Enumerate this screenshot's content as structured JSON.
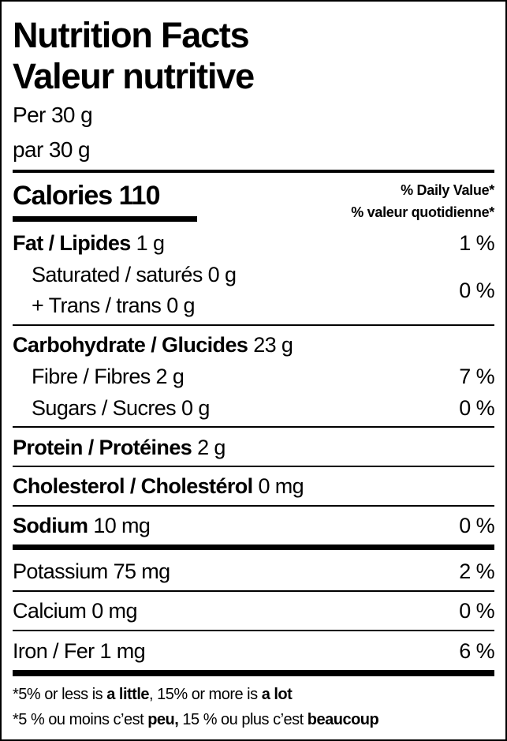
{
  "title_en": "Nutrition Facts",
  "title_fr": "Valeur nutritive",
  "serving_en": "Per 30 g",
  "serving_fr": "par 30 g",
  "calories": {
    "label": "Calories",
    "value": "110"
  },
  "daily_value_en": "% Daily Value*",
  "daily_value_fr": "% valeur quotidienne*",
  "nutrients": {
    "fat": {
      "label": "Fat / Lipides",
      "amount": "1 g",
      "dv": "1 %"
    },
    "saturated": {
      "label": "Saturated / saturés",
      "amount": "0 g"
    },
    "trans": {
      "label": "+ Trans / trans",
      "amount": "0 g"
    },
    "sat_trans_dv": "0 %",
    "carbohydrate": {
      "label": "Carbohydrate / Glucides",
      "amount": "23 g"
    },
    "fibre": {
      "label": "Fibre / Fibres",
      "amount": "2 g",
      "dv": "7 %"
    },
    "sugars": {
      "label": "Sugars / Sucres",
      "amount": "0 g",
      "dv": "0 %"
    },
    "protein": {
      "label": "Protein / Protéines",
      "amount": "2 g"
    },
    "cholesterol": {
      "label": "Cholesterol / Cholestérol",
      "amount": "0 mg"
    },
    "sodium": {
      "label": "Sodium",
      "amount": "10 mg",
      "dv": "0 %"
    },
    "potassium": {
      "label": "Potassium",
      "amount": "75 mg",
      "dv": "2 %"
    },
    "calcium": {
      "label": "Calcium",
      "amount": "0 mg",
      "dv": "0 %"
    },
    "iron": {
      "label": "Iron / Fer",
      "amount": "1 mg",
      "dv": "6 %"
    }
  },
  "footnote_en": {
    "a": "*5% or less is ",
    "b": "a little",
    ",c": "",
    "c": ", 15% or more is ",
    "d": "a lot"
  },
  "footnote_fr": {
    "a": "*5 % ou moins c’est ",
    "b": "peu,",
    "c": " 15 % ou plus c’est ",
    "d": "beaucoup"
  }
}
